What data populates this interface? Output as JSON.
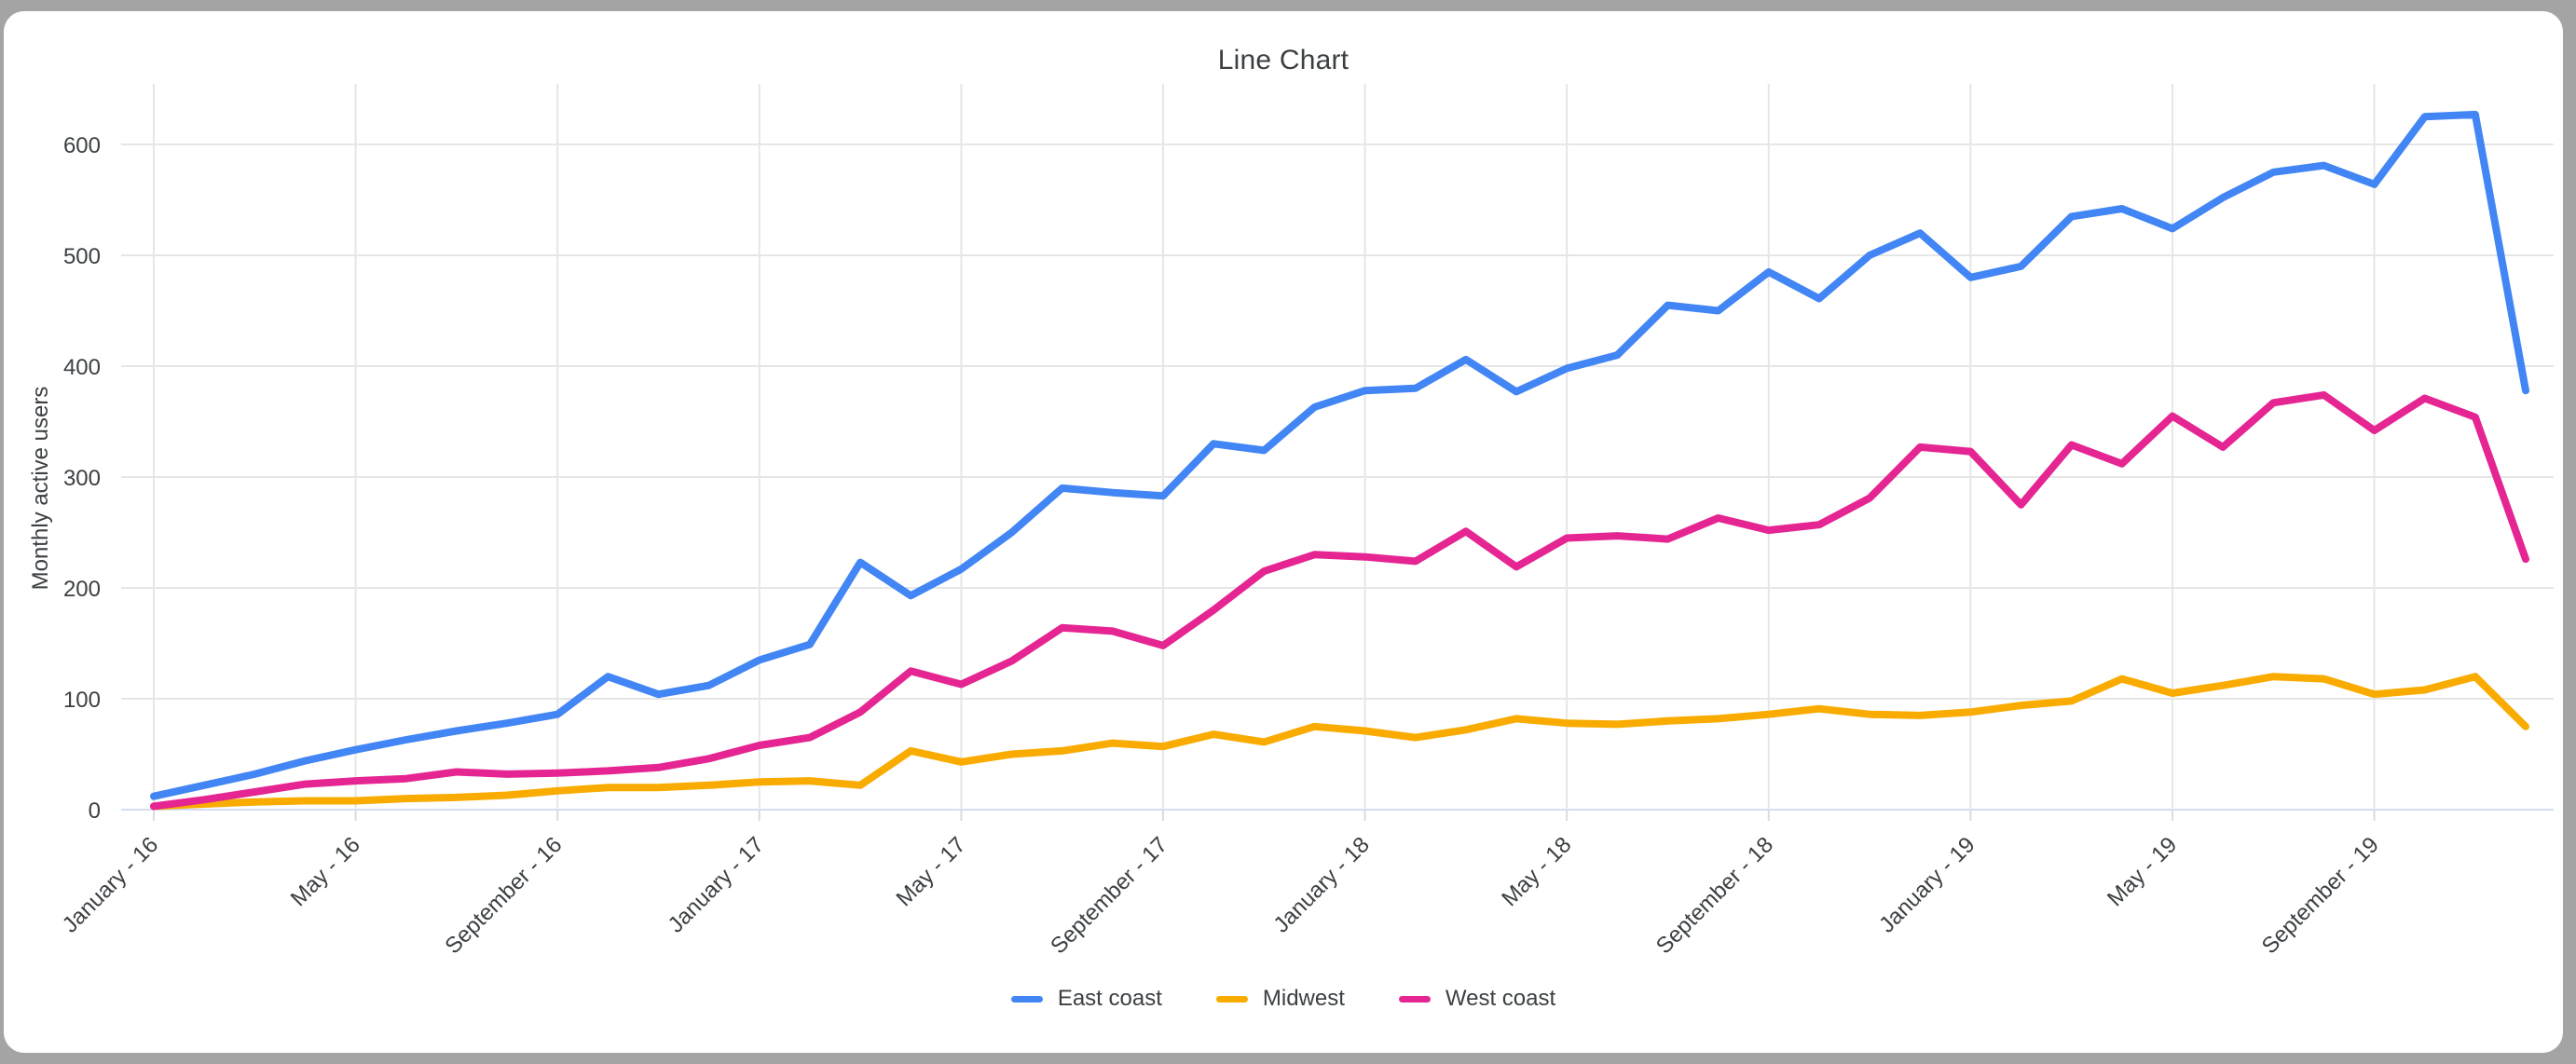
{
  "chart_data": {
    "type": "line",
    "title": "Line Chart",
    "xlabel": "",
    "ylabel": "Monthly active users",
    "y_ticks": [
      0,
      100,
      200,
      300,
      400,
      500,
      600
    ],
    "ylim": [
      0,
      650
    ],
    "grid": true,
    "legend_position": "bottom",
    "n_points": 48,
    "x_start": "January - 16",
    "x_end": "December - 19",
    "x_tick_labels": [
      "January - 16",
      "May - 16",
      "September - 16",
      "January - 17",
      "May - 17",
      "September - 17",
      "January - 18",
      "May - 18",
      "September - 18",
      "January - 19",
      "May - 19",
      "September - 19"
    ],
    "x_tick_positions": [
      0,
      4,
      8,
      12,
      16,
      20,
      24,
      28,
      32,
      36,
      40,
      44
    ],
    "series": [
      {
        "name": "East coast",
        "color": "#4285f4",
        "values": [
          12,
          22,
          32,
          44,
          54,
          63,
          71,
          78,
          86,
          120,
          104,
          112,
          135,
          149,
          223,
          193,
          217,
          250,
          290,
          286,
          283,
          330,
          324,
          363,
          378,
          380,
          406,
          377,
          398,
          410,
          455,
          450,
          485,
          461,
          500,
          520,
          480,
          490,
          535,
          542,
          524,
          552,
          575,
          581,
          564,
          625,
          627,
          378
        ]
      },
      {
        "name": "Midwest",
        "color": "#f9ab00",
        "values": [
          3,
          5,
          7,
          8,
          8,
          10,
          11,
          13,
          17,
          20,
          20,
          22,
          25,
          26,
          22,
          53,
          43,
          50,
          53,
          60,
          57,
          68,
          61,
          75,
          71,
          65,
          72,
          82,
          78,
          77,
          80,
          82,
          86,
          91,
          86,
          85,
          88,
          94,
          98,
          118,
          105,
          112,
          120,
          118,
          104,
          108,
          120,
          75
        ]
      },
      {
        "name": "West coast",
        "color": "#e52592",
        "values": [
          3,
          9,
          16,
          23,
          26,
          28,
          34,
          32,
          33,
          35,
          38,
          46,
          58,
          65,
          88,
          125,
          113,
          134,
          164,
          161,
          148,
          180,
          215,
          230,
          228,
          224,
          251,
          219,
          245,
          247,
          244,
          263,
          252,
          257,
          281,
          327,
          323,
          275,
          329,
          312,
          355,
          327,
          367,
          374,
          342,
          371,
          354,
          226
        ]
      }
    ],
    "colors": {
      "axis_text": "#3c4043",
      "gridline": "#e6e6e6",
      "baseline": "#d3def3",
      "tick": "#dadce0",
      "card_bg": "#ffffff",
      "page_bg": "#a4a4a4"
    }
  }
}
